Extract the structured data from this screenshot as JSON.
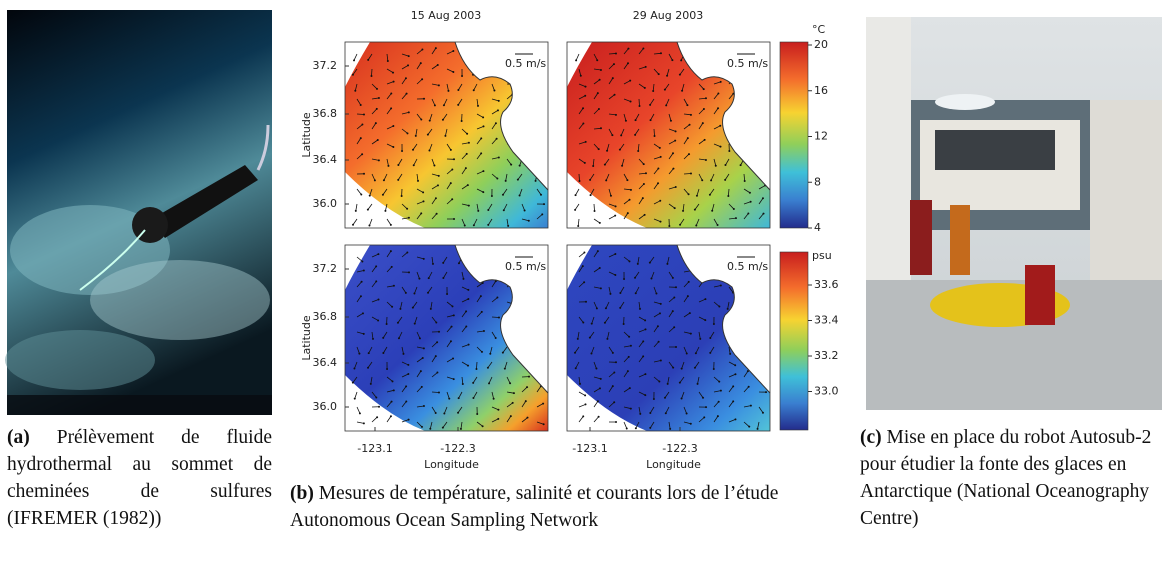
{
  "figures": [
    {
      "label": "(a)",
      "caption": "Prélèvement de fluide hydrothermal au sommet de cheminées de sulfures (IFREMER (1982))"
    },
    {
      "label": "(b)",
      "caption": "Mesures de température, salinité et courants lors de l’étude Autonomous Ocean Sampling Network",
      "panel": {
        "dates": [
          "15 Aug 2003",
          "29 Aug 2003"
        ],
        "y_label": "Latitude",
        "x_label": "Longitude",
        "yticks": [
          "37.2",
          "36.8",
          "36.4",
          "36.0"
        ],
        "xticks": [
          "-123.1",
          "-122.3"
        ],
        "scale_label": "0.5 m/s",
        "colorbars": [
          {
            "unit": "°C",
            "ticks": [
              "20",
              "16",
              "12",
              "8",
              "4"
            ]
          },
          {
            "unit": "psu",
            "ticks": [
              "33.6",
              "33.4",
              "33.2",
              "33.0"
            ]
          }
        ]
      }
    },
    {
      "label": "(c)",
      "caption": "Mise en place du robot Autosub-2 pour étudier la fonte des glaces en Antarctique (National Oceanography Centre)"
    }
  ]
}
